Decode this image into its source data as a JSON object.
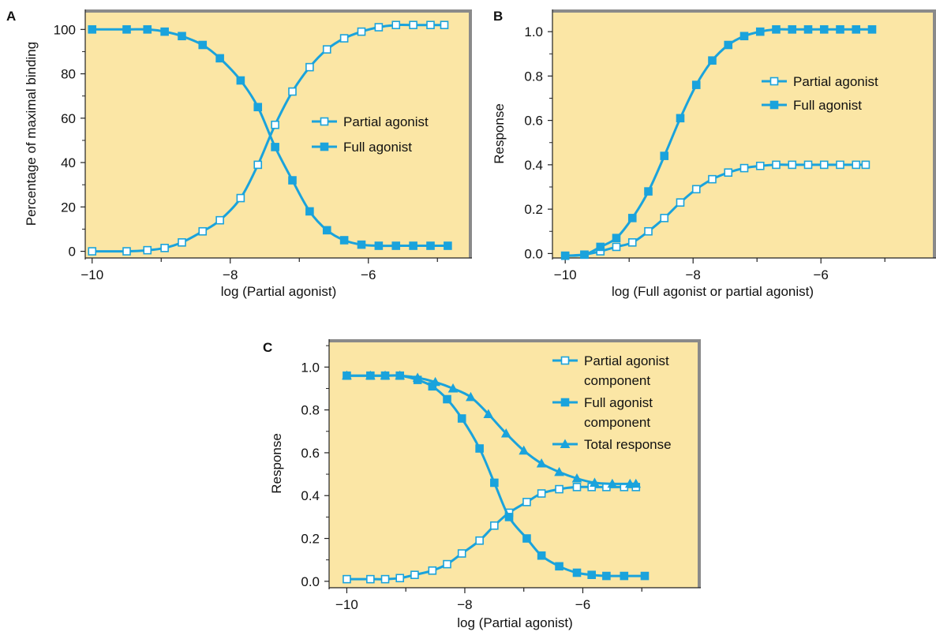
{
  "colors": {
    "plot_bg": "#fbe6a5",
    "frame": "#8a8a8a",
    "series": "#1aa3dc",
    "text": "#111111"
  },
  "chart_data": [
    {
      "id": "A",
      "panel_label": "A",
      "type": "line",
      "xlabel": "log (Partial agonist)",
      "ylabel": "Percentage of maximal binding",
      "xlim": [
        -10.1,
        -4.5
      ],
      "ylim": [
        -3,
        109
      ],
      "xticks": [
        -10,
        -8,
        -6
      ],
      "xtick_labels": [
        "−10",
        "−8",
        "−6"
      ],
      "yticks": [
        0,
        20,
        40,
        60,
        80,
        100
      ],
      "ytick_labels": [
        "0",
        "20",
        "40",
        "60",
        "80",
        "100"
      ],
      "legend_position": "center-right",
      "series": [
        {
          "name": "Partial agonist",
          "marker": "open-square",
          "x": [
            -10.0,
            -9.5,
            -9.2,
            -8.95,
            -8.7,
            -8.4,
            -8.15,
            -7.85,
            -7.6,
            -7.35,
            -7.1,
            -6.85,
            -6.6,
            -6.35,
            -6.1,
            -5.85,
            -5.6,
            -5.35,
            -5.1,
            -4.9
          ],
          "y": [
            0,
            0,
            0.5,
            1.5,
            4,
            9,
            14,
            24,
            39,
            57,
            72,
            83,
            91,
            96,
            99,
            101,
            102,
            102,
            102,
            102
          ]
        },
        {
          "name": "Full agonist",
          "marker": "filled-square",
          "x": [
            -10.0,
            -9.5,
            -9.2,
            -8.95,
            -8.7,
            -8.4,
            -8.15,
            -7.85,
            -7.6,
            -7.35,
            -7.1,
            -6.85,
            -6.6,
            -6.35,
            -6.1,
            -5.85,
            -5.6,
            -5.35,
            -5.1,
            -4.85
          ],
          "y": [
            100,
            100,
            100,
            99,
            97,
            93,
            87,
            77,
            65,
            47,
            32,
            18,
            9.5,
            5,
            3,
            2.5,
            2.5,
            2.5,
            2.5,
            2.5
          ]
        }
      ]
    },
    {
      "id": "B",
      "panel_label": "B",
      "type": "line",
      "xlabel": "log (Full agonist or partial agonist)",
      "ylabel": "Response",
      "xlim": [
        -10.2,
        -4.2
      ],
      "ylim": [
        -0.02,
        1.1
      ],
      "xticks": [
        -10,
        -8,
        -6
      ],
      "xtick_labels": [
        "−10",
        "−8",
        "−6"
      ],
      "yticks": [
        0.0,
        0.2,
        0.4,
        0.6,
        0.8,
        1.0
      ],
      "ytick_labels": [
        "0.0",
        "0.2",
        "0.4",
        "0.6",
        "0.8",
        "1.0"
      ],
      "legend_position": "right",
      "series": [
        {
          "name": "Partial agonist",
          "marker": "open-square",
          "x": [
            -10.0,
            -9.7,
            -9.45,
            -9.2,
            -8.95,
            -8.7,
            -8.45,
            -8.2,
            -7.95,
            -7.7,
            -7.45,
            -7.2,
            -6.95,
            -6.7,
            -6.45,
            -6.2,
            -5.95,
            -5.7,
            -5.45,
            -5.3
          ],
          "y": [
            -0.01,
            -0.005,
            0.01,
            0.03,
            0.05,
            0.1,
            0.16,
            0.23,
            0.29,
            0.335,
            0.365,
            0.385,
            0.395,
            0.4,
            0.4,
            0.4,
            0.4,
            0.4,
            0.4,
            0.4
          ]
        },
        {
          "name": "Full agonist",
          "marker": "filled-square",
          "x": [
            -10.0,
            -9.7,
            -9.45,
            -9.2,
            -8.95,
            -8.7,
            -8.45,
            -8.2,
            -7.95,
            -7.7,
            -7.45,
            -7.2,
            -6.95,
            -6.7,
            -6.45,
            -6.2,
            -5.95,
            -5.7,
            -5.45,
            -5.2
          ],
          "y": [
            -0.01,
            -0.005,
            0.03,
            0.07,
            0.16,
            0.28,
            0.44,
            0.61,
            0.76,
            0.87,
            0.94,
            0.98,
            1.0,
            1.01,
            1.01,
            1.01,
            1.01,
            1.01,
            1.01,
            1.01
          ]
        }
      ]
    },
    {
      "id": "C",
      "panel_label": "C",
      "type": "line",
      "xlabel": "log (Partial agonist)",
      "ylabel": "Response",
      "xlim": [
        -10.3,
        -4.0
      ],
      "ylim": [
        -0.03,
        1.13
      ],
      "xticks": [
        -10,
        -8,
        -6
      ],
      "xtick_labels": [
        "−10",
        "−8",
        "−6"
      ],
      "yticks": [
        0.0,
        0.2,
        0.4,
        0.6,
        0.8,
        1.0
      ],
      "ytick_labels": [
        "0.0",
        "0.2",
        "0.4",
        "0.6",
        "0.8",
        "1.0"
      ],
      "legend_position": "top-right",
      "series": [
        {
          "name": "Partial agonist component",
          "legend_lines": [
            "Partial agonist",
            "component"
          ],
          "marker": "open-square",
          "x": [
            -10.0,
            -9.6,
            -9.35,
            -9.1,
            -8.85,
            -8.55,
            -8.3,
            -8.05,
            -7.75,
            -7.5,
            -7.25,
            -6.95,
            -6.7,
            -6.4,
            -6.1,
            -5.85,
            -5.6,
            -5.3,
            -5.1
          ],
          "y": [
            0.01,
            0.01,
            0.01,
            0.015,
            0.03,
            0.05,
            0.08,
            0.13,
            0.19,
            0.26,
            0.32,
            0.37,
            0.41,
            0.43,
            0.44,
            0.44,
            0.44,
            0.44,
            0.44
          ]
        },
        {
          "name": "Full agonist component",
          "legend_lines": [
            "Full agonist",
            "component"
          ],
          "marker": "filled-square",
          "x": [
            -10.0,
            -9.6,
            -9.35,
            -9.1,
            -8.8,
            -8.55,
            -8.3,
            -8.05,
            -7.75,
            -7.5,
            -7.25,
            -6.95,
            -6.7,
            -6.4,
            -6.1,
            -5.85,
            -5.6,
            -5.3,
            -4.95
          ],
          "y": [
            0.96,
            0.96,
            0.96,
            0.96,
            0.94,
            0.91,
            0.85,
            0.76,
            0.62,
            0.46,
            0.3,
            0.2,
            0.12,
            0.07,
            0.04,
            0.03,
            0.025,
            0.025,
            0.025
          ]
        },
        {
          "name": "Total response",
          "legend_lines": [
            "Total response"
          ],
          "marker": "filled-triangle",
          "x": [
            -10.0,
            -9.6,
            -9.35,
            -9.1,
            -8.8,
            -8.5,
            -8.2,
            -7.9,
            -7.6,
            -7.3,
            -7.0,
            -6.7,
            -6.4,
            -6.1,
            -5.8,
            -5.5,
            -5.2,
            -5.1
          ],
          "y": [
            0.96,
            0.96,
            0.96,
            0.96,
            0.95,
            0.93,
            0.9,
            0.86,
            0.78,
            0.69,
            0.61,
            0.55,
            0.51,
            0.48,
            0.46,
            0.455,
            0.455,
            0.455
          ]
        }
      ]
    }
  ]
}
